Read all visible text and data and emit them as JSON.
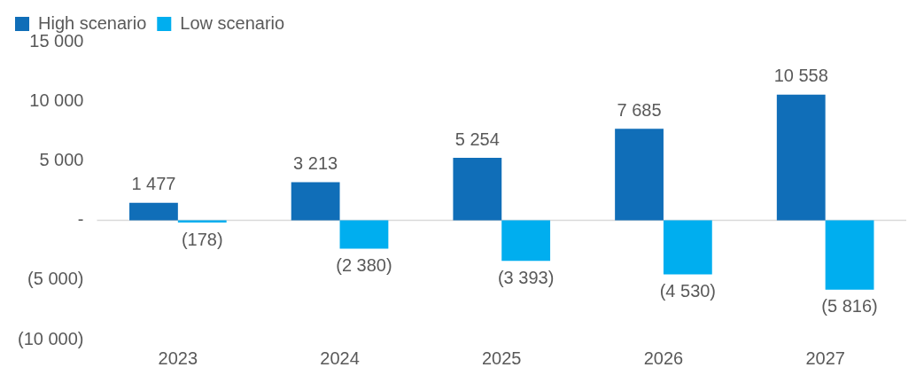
{
  "chart_data": {
    "type": "bar",
    "categories": [
      "2023",
      "2024",
      "2025",
      "2026",
      "2027"
    ],
    "series": [
      {
        "name": "High scenario",
        "color": "#106eb8",
        "values": [
          1477,
          3213,
          5254,
          7685,
          10558
        ],
        "value_labels": [
          "1 477",
          "3 213",
          "5 254",
          "7 685",
          "10 558"
        ]
      },
      {
        "name": "Low scenario",
        "color": "#00aeef",
        "values": [
          -178,
          -2380,
          -3393,
          -4530,
          -5816
        ],
        "value_labels": [
          "(178)",
          "(2 380)",
          "(3 393)",
          "(4 530)",
          "(5 816)"
        ]
      }
    ],
    "ylim": [
      -10000,
      15000
    ],
    "yticks": [
      {
        "value": -10000,
        "label": "(10 000)"
      },
      {
        "value": -5000,
        "label": "(5 000)"
      },
      {
        "value": 0,
        "label": "-"
      },
      {
        "value": 5000,
        "label": "5 000"
      },
      {
        "value": 10000,
        "label": "10 000"
      },
      {
        "value": 15000,
        "label": "15 000"
      }
    ],
    "ref_lines": [
      {
        "axis": "y",
        "value": 0,
        "color": "#d9d9d9"
      }
    ],
    "grid": false,
    "legend": "top left"
  }
}
